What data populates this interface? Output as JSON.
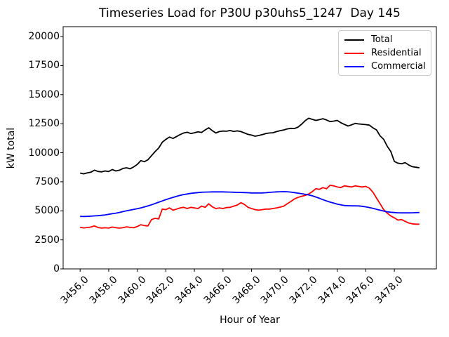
{
  "chart_data": {
    "type": "line",
    "title": "Timeseries Load for P30U p30uhs5_1247  Day 145",
    "xlabel": "Hour of Year",
    "ylabel": "kW total",
    "grid": false,
    "legend_position": "upper right",
    "xlim": [
      3454.81,
      3480.94
    ],
    "ylim": [
      0,
      20850
    ],
    "x_start": 3456.0,
    "x_step": 0.25,
    "n_points": 96,
    "xticks": [
      3456.0,
      3458.0,
      3460.0,
      3462.0,
      3464.0,
      3466.0,
      3468.0,
      3470.0,
      3472.0,
      3474.0,
      3476.0,
      3478.0
    ],
    "xtick_labels": [
      "3456.0",
      "3458.0",
      "3460.0",
      "3462.0",
      "3464.0",
      "3466.0",
      "3468.0",
      "3470.0",
      "3472.0",
      "3474.0",
      "3476.0",
      "3478.0"
    ],
    "yticks": [
      0,
      2500,
      5000,
      7500,
      10000,
      12500,
      15000,
      17500,
      20000
    ],
    "ytick_labels": [
      "0",
      "2500",
      "5000",
      "7500",
      "10000",
      "12500",
      "15000",
      "17500",
      "20000"
    ],
    "series": [
      {
        "name": "Total",
        "color": "#000000",
        "values": [
          8250,
          8180,
          8270,
          8320,
          8500,
          8390,
          8350,
          8430,
          8380,
          8550,
          8430,
          8500,
          8650,
          8700,
          8620,
          8780,
          9000,
          9320,
          9230,
          9400,
          9750,
          10100,
          10400,
          10900,
          11150,
          11350,
          11230,
          11400,
          11560,
          11700,
          11760,
          11650,
          11720,
          11800,
          11750,
          11960,
          12150,
          11900,
          11700,
          11820,
          11870,
          11850,
          11910,
          11830,
          11880,
          11820,
          11700,
          11580,
          11520,
          11420,
          11480,
          11560,
          11650,
          11700,
          11720,
          11820,
          11900,
          11960,
          12050,
          12100,
          12080,
          12200,
          12450,
          12750,
          12970,
          12870,
          12780,
          12850,
          12930,
          12820,
          12680,
          12720,
          12780,
          12580,
          12440,
          12300,
          12400,
          12520,
          12480,
          12450,
          12420,
          12380,
          12140,
          11960,
          11450,
          11150,
          10550,
          10100,
          9250,
          9100,
          9050,
          9150,
          8950,
          8800,
          8750,
          8700
        ]
      },
      {
        "name": "Residential",
        "color": "#ff0000",
        "values": [
          3580,
          3530,
          3560,
          3600,
          3700,
          3560,
          3520,
          3540,
          3510,
          3600,
          3550,
          3510,
          3550,
          3620,
          3570,
          3540,
          3650,
          3800,
          3730,
          3700,
          4250,
          4350,
          4300,
          5150,
          5100,
          5250,
          5050,
          5150,
          5250,
          5300,
          5200,
          5300,
          5250,
          5200,
          5400,
          5300,
          5600,
          5350,
          5200,
          5250,
          5200,
          5280,
          5300,
          5400,
          5500,
          5700,
          5550,
          5300,
          5200,
          5100,
          5050,
          5100,
          5150,
          5150,
          5200,
          5250,
          5320,
          5400,
          5600,
          5800,
          6020,
          6150,
          6250,
          6320,
          6450,
          6650,
          6900,
          6850,
          7000,
          6900,
          7200,
          7150,
          7050,
          7000,
          7150,
          7100,
          7050,
          7150,
          7100,
          7050,
          7100,
          6950,
          6600,
          6100,
          5600,
          5100,
          4800,
          4550,
          4400,
          4200,
          4250,
          4100,
          3950,
          3880,
          3850,
          3850
        ]
      },
      {
        "name": "Commercial",
        "color": "#0000ff",
        "values": [
          4520,
          4510,
          4520,
          4540,
          4560,
          4580,
          4610,
          4650,
          4700,
          4750,
          4800,
          4860,
          4930,
          5000,
          5060,
          5120,
          5180,
          5250,
          5330,
          5420,
          5520,
          5630,
          5740,
          5850,
          5960,
          6060,
          6160,
          6250,
          6330,
          6400,
          6450,
          6500,
          6540,
          6570,
          6600,
          6610,
          6620,
          6630,
          6630,
          6630,
          6630,
          6620,
          6610,
          6600,
          6590,
          6580,
          6570,
          6560,
          6540,
          6530,
          6530,
          6540,
          6560,
          6590,
          6610,
          6630,
          6640,
          6650,
          6640,
          6610,
          6570,
          6520,
          6470,
          6420,
          6370,
          6290,
          6190,
          6080,
          5960,
          5850,
          5750,
          5660,
          5580,
          5510,
          5460,
          5440,
          5430,
          5430,
          5420,
          5390,
          5340,
          5280,
          5210,
          5130,
          5050,
          4980,
          4920,
          4880,
          4850,
          4830,
          4820,
          4820,
          4820,
          4830,
          4840,
          4850
        ]
      }
    ]
  },
  "legend": {
    "border_color": "#cccccc",
    "entries": [
      "Total",
      "Residential",
      "Commercial"
    ]
  }
}
